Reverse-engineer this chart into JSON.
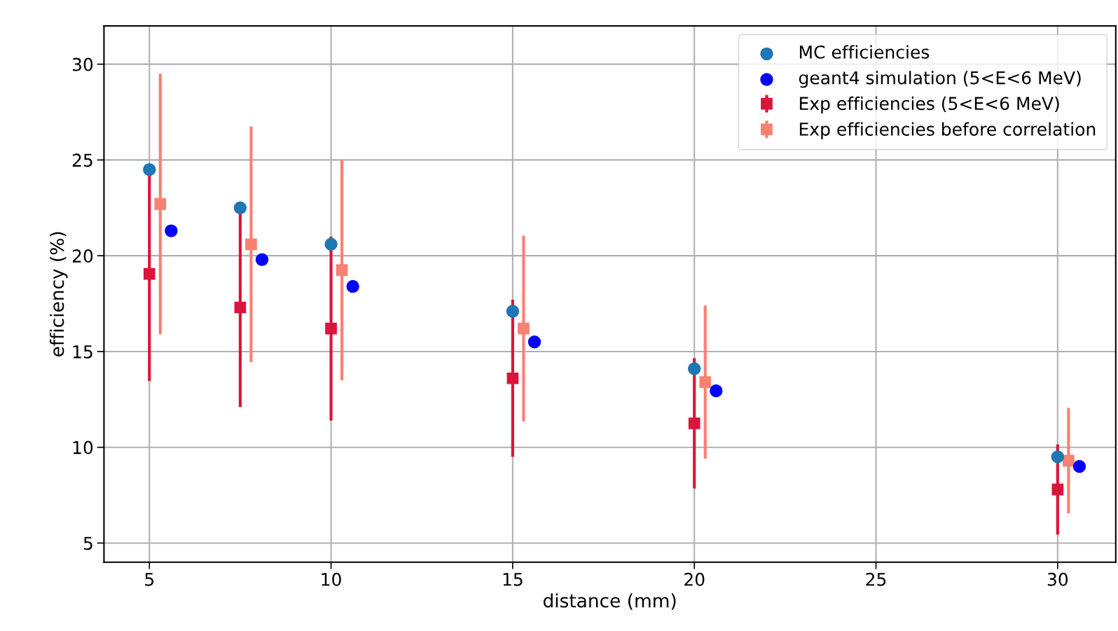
{
  "chart_data": {
    "type": "scatter",
    "xlabel": "distance (mm)",
    "ylabel": "efficiency (%)",
    "xlim": [
      3.75,
      31.6
    ],
    "ylim": [
      4,
      32
    ],
    "xticks": [
      5,
      10,
      15,
      20,
      25,
      30
    ],
    "yticks": [
      5,
      10,
      15,
      20,
      25,
      30
    ],
    "grid": true,
    "legend": "top right",
    "series": [
      {
        "name": "MC efficiencies",
        "color": "#1f77b4",
        "marker": "circle",
        "x": [
          5,
          7.5,
          10,
          15,
          20,
          30
        ],
        "values": [
          24.5,
          22.5,
          20.6,
          17.1,
          14.1,
          9.5
        ]
      },
      {
        "name": "geant4 simulation (5<E<6 MeV)",
        "color": "#0000ff",
        "marker": "circle",
        "x": [
          5.6,
          8.1,
          10.6,
          15.6,
          20.6,
          30.6
        ],
        "values": [
          21.3,
          19.8,
          18.4,
          15.5,
          12.95,
          9.0
        ]
      },
      {
        "name": "Exp efficiencies (5<E<6 MeV)",
        "color": "#dc143c",
        "marker": "square",
        "x": [
          5,
          7.5,
          10,
          15,
          20,
          30
        ],
        "values": [
          19.05,
          17.3,
          16.2,
          13.6,
          11.25,
          7.8
        ],
        "errors": [
          5.6,
          5.2,
          4.8,
          4.1,
          3.4,
          2.35
        ]
      },
      {
        "name": "Exp efficiencies before correlation",
        "color": "#fa8072",
        "marker": "square",
        "x": [
          5.3,
          7.8,
          10.3,
          15.3,
          20.3,
          30.3
        ],
        "values": [
          22.7,
          20.6,
          19.25,
          16.2,
          13.4,
          9.3
        ],
        "errors": [
          6.8,
          6.15,
          5.75,
          4.85,
          4.0,
          2.75
        ]
      }
    ]
  }
}
